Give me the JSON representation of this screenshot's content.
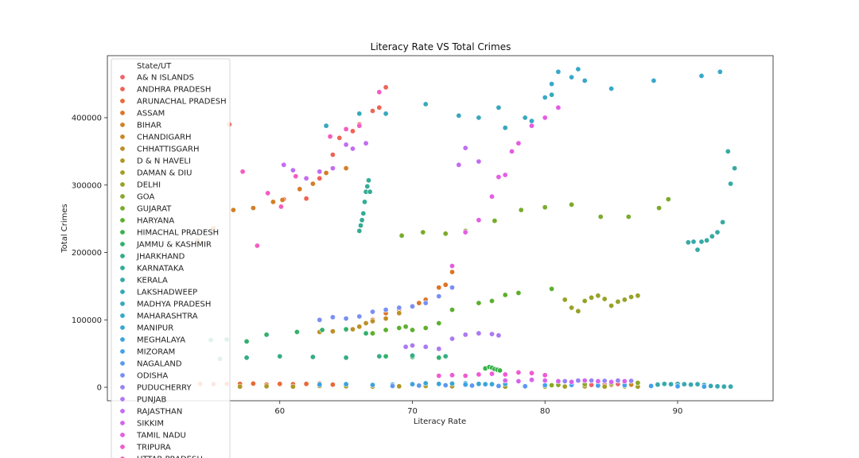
{
  "chart_data": {
    "type": "scatter",
    "title": "Literacy Rate VS Total Crimes",
    "xlabel": "Literacy Rate",
    "ylabel": "Total Crimes",
    "xlim": [
      47,
      97.2
    ],
    "ylim": [
      -20000,
      492000
    ],
    "x_ticks": [
      60,
      70,
      80,
      90
    ],
    "y_ticks": [
      0,
      100000,
      200000,
      300000,
      400000
    ],
    "y_tick_labels": [
      "0",
      "100000",
      "200000",
      "300000",
      "400000"
    ],
    "grid": false,
    "legend": {
      "title": "State/UT",
      "placement": "upper-left",
      "entries": [
        {
          "name": "A& N ISLANDS",
          "color": "#f0626b"
        },
        {
          "name": "ANDHRA PRADESH",
          "color": "#ee6455"
        },
        {
          "name": "ARUNACHAL PRADESH",
          "color": "#e86a38"
        },
        {
          "name": "ASSAM",
          "color": "#de7428"
        },
        {
          "name": "BIHAR",
          "color": "#d37f27"
        },
        {
          "name": "CHANDIGARH",
          "color": "#c88827"
        },
        {
          "name": "CHHATTISGARH",
          "color": "#bc9027"
        },
        {
          "name": "D & N HAVELI",
          "color": "#b09727"
        },
        {
          "name": "DAMAN & DIU",
          "color": "#a49d27"
        },
        {
          "name": "DELHI",
          "color": "#97a227"
        },
        {
          "name": "GOA",
          "color": "#8aa72b"
        },
        {
          "name": "GUJARAT",
          "color": "#7aab2b"
        },
        {
          "name": "HARYANA",
          "color": "#5db02d"
        },
        {
          "name": "HIMACHAL PRADESH",
          "color": "#3ab24a"
        },
        {
          "name": "JAMMU & KASHMIR",
          "color": "#33b06d"
        },
        {
          "name": "JHARKHAND",
          "color": "#34ad84"
        },
        {
          "name": "KARNATAKA",
          "color": "#35ab95"
        },
        {
          "name": "KERALA",
          "color": "#36aaa3"
        },
        {
          "name": "LAKSHADWEEP",
          "color": "#37a9b0"
        },
        {
          "name": "MADHYA PRADESH",
          "color": "#38a8bc"
        },
        {
          "name": "MAHARASHTRA",
          "color": "#39a8c8"
        },
        {
          "name": "MANIPUR",
          "color": "#3aa6d4"
        },
        {
          "name": "MEGHALAYA",
          "color": "#3ba3e0"
        },
        {
          "name": "MIZORAM",
          "color": "#43a0ec"
        },
        {
          "name": "NAGALAND",
          "color": "#5b98f2"
        },
        {
          "name": "ODISHA",
          "color": "#7a8ff4"
        },
        {
          "name": "PUDUCHERRY",
          "color": "#9584f3"
        },
        {
          "name": "PUNJAB",
          "color": "#ad79f1"
        },
        {
          "name": "RAJASTHAN",
          "color": "#c26df0"
        },
        {
          "name": "SIKKIM",
          "color": "#d564ec"
        },
        {
          "name": "TAMIL NADU",
          "color": "#e55de2"
        },
        {
          "name": "TRIPURA",
          "color": "#ef5bd2"
        },
        {
          "name": "UTTAR PRADESH",
          "color": "#f35dbf"
        }
      ]
    },
    "series": [
      {
        "name": "A& N ISLANDS",
        "x": [
          83.5,
          84,
          84.5,
          85,
          85.5,
          86
        ],
        "y": [
          3500,
          4000,
          4200,
          4500,
          4800,
          5000
        ]
      },
      {
        "name": "ANDHRA PRADESH",
        "x": [
          56.2,
          60.3,
          62,
          63,
          64,
          64.5,
          65.5,
          66,
          67,
          67.5,
          68
        ],
        "y": [
          390000,
          279000,
          280000,
          310000,
          345000,
          370000,
          380000,
          390000,
          410000,
          415000,
          445000
        ]
      },
      {
        "name": "ARUNACHAL PRADESH",
        "x": [
          54,
          55,
          56,
          57,
          58,
          59,
          60,
          61,
          62,
          63,
          64
        ],
        "y": [
          5000,
          4500,
          5000,
          5000,
          5500,
          4000,
          5000,
          4500,
          5000,
          5500,
          4000
        ]
      },
      {
        "name": "ASSAM",
        "x": [
          67,
          68,
          69,
          70,
          70.5,
          71,
          72,
          72.5,
          73
        ],
        "y": [
          100000,
          110000,
          115000,
          120000,
          125000,
          130000,
          148000,
          152000,
          171000
        ]
      },
      {
        "name": "BIHAR",
        "x": [
          53.8,
          55,
          56.5,
          58,
          59.5,
          60.2,
          61.5,
          62.5,
          63.5,
          65
        ],
        "y": [
          218000,
          236000,
          263000,
          266000,
          275000,
          278000,
          294000,
          302000,
          318000,
          325000
        ]
      },
      {
        "name": "CHANDIGARH",
        "x": [
          81,
          82,
          83,
          84,
          85,
          86,
          86.5
        ],
        "y": [
          3000,
          3500,
          4000,
          4500,
          3500,
          3000,
          4000
        ]
      },
      {
        "name": "CHHATTISGARH",
        "x": [
          63,
          64,
          65,
          65.5,
          66,
          66.5,
          67,
          68,
          69,
          70
        ],
        "y": [
          82000,
          83000,
          85000,
          86000,
          90000,
          95000,
          98000,
          102000,
          110000,
          120000
        ]
      },
      {
        "name": "D & N HAVELI",
        "x": [
          57,
          59,
          61,
          63,
          65,
          67,
          69,
          71,
          73
        ],
        "y": [
          1000,
          1500,
          1000,
          2000,
          1500,
          1000,
          1500,
          2000,
          1500
        ]
      },
      {
        "name": "DAMAN & DIU",
        "x": [
          77,
          78.5,
          80,
          81.5,
          83,
          84.5,
          86,
          87
        ],
        "y": [
          1000,
          1200,
          1000,
          1100,
          1300,
          1000,
          1200,
          1000
        ]
      },
      {
        "name": "DELHI",
        "x": [
          81.5,
          82,
          82.5,
          83,
          83.5,
          84,
          84.5,
          85,
          85.5,
          86,
          86.5,
          87
        ],
        "y": [
          130000,
          118000,
          113000,
          128000,
          133000,
          136000,
          131000,
          121000,
          127000,
          130000,
          134000,
          136000
        ]
      },
      {
        "name": "GOA",
        "x": [
          80.5,
          81,
          82,
          83,
          84,
          85,
          86,
          87
        ],
        "y": [
          3000,
          3500,
          4000,
          4500,
          5000,
          5500,
          6000,
          6500
        ]
      },
      {
        "name": "GUJARAT",
        "x": [
          69.2,
          70.8,
          72.5,
          74,
          76.2,
          78.2,
          80,
          82,
          84.2,
          86.3,
          88.6,
          89.3
        ],
        "y": [
          225000,
          230000,
          228000,
          232000,
          247000,
          263000,
          267000,
          271000,
          253000,
          253000,
          266000,
          279000
        ]
      },
      {
        "name": "HARYANA",
        "x": [
          67,
          68,
          69,
          69.5,
          70,
          71,
          72,
          73,
          75,
          76,
          77,
          78,
          80.5
        ],
        "y": [
          80000,
          85000,
          88000,
          90000,
          85000,
          88000,
          95000,
          115000,
          125000,
          128000,
          137000,
          140000,
          146000
        ]
      },
      {
        "name": "HIMACHAL PRADESH",
        "x": [
          75.5,
          75.8,
          76,
          76.2,
          76.4,
          76.6
        ],
        "y": [
          28000,
          30000,
          29000,
          27000,
          26000,
          25000
        ]
      },
      {
        "name": "JAMMU & KASHMIR",
        "x": [
          54.8,
          56,
          57.5,
          59,
          61.3,
          63.2,
          65,
          66.5,
          68,
          70,
          72
        ],
        "y": [
          70000,
          71000,
          68000,
          78000,
          82000,
          85000,
          86000,
          80000,
          46000,
          45000,
          44000
        ]
      },
      {
        "name": "JHARKHAND",
        "x": [
          55.5,
          57.5,
          60,
          62.5,
          65,
          67.5,
          70,
          72.5
        ],
        "y": [
          42000,
          44000,
          46000,
          45000,
          44000,
          46000,
          47000,
          46000
        ]
      },
      {
        "name": "KARNATAKA",
        "x": [
          66,
          66.1,
          66.2,
          66.3,
          66.4,
          66.5,
          66.6,
          66.7,
          66.8
        ],
        "y": [
          232000,
          240000,
          248000,
          258000,
          275000,
          290000,
          298000,
          307000,
          290000
        ]
      },
      {
        "name": "KERALA",
        "x": [
          90.8,
          91.2,
          91.5,
          91.8,
          92.2,
          92.6,
          93,
          93.4,
          93.8,
          94,
          94.3
        ],
        "y": [
          215000,
          216000,
          204000,
          216000,
          218000,
          224000,
          230000,
          245000,
          350000,
          302000,
          325000
        ]
      },
      {
        "name": "LAKSHADWEEP",
        "x": [
          88.5,
          89,
          89.5,
          90,
          90.5,
          91,
          91.5,
          92,
          92.5,
          93,
          93.5,
          94
        ],
        "y": [
          4000,
          5000,
          4500,
          5000,
          4500,
          4000,
          4500,
          3500,
          2000,
          1500,
          1000,
          1000
        ]
      },
      {
        "name": "MADHYA PRADESH",
        "x": [
          63.5,
          66,
          68,
          71,
          73.5,
          75,
          76.5,
          77,
          78.5,
          80,
          80.5
        ],
        "y": [
          388000,
          406000,
          406000,
          420000,
          403000,
          400000,
          415000,
          385000,
          400000,
          430000,
          434000
        ]
      },
      {
        "name": "MAHARASHTRA",
        "x": [
          79,
          80,
          80.5,
          81,
          82,
          82.5,
          83,
          85,
          88.2,
          91.8,
          93.2
        ],
        "y": [
          395000,
          430000,
          450000,
          468000,
          460000,
          472000,
          455000,
          443000,
          455000,
          462000,
          468000
        ]
      },
      {
        "name": "MANIPUR",
        "x": [
          70,
          71,
          72,
          73,
          74,
          75,
          76,
          77
        ],
        "y": [
          5000,
          6000,
          5000,
          5500,
          6000,
          5000,
          4500,
          5000
        ]
      },
      {
        "name": "MEGHALAYA",
        "x": [
          63,
          65,
          67,
          68.5,
          70,
          72,
          74,
          75.5
        ],
        "y": [
          4000,
          4500,
          3500,
          4000,
          4500,
          5000,
          4000,
          4500
        ]
      },
      {
        "name": "MIZORAM",
        "x": [
          80,
          82,
          84,
          86,
          88,
          90,
          92
        ],
        "y": [
          3000,
          3500,
          2500,
          3000,
          2000,
          1500,
          1000
        ]
      },
      {
        "name": "NAGALAND",
        "x": [
          68.5,
          70.5,
          72.5,
          74.5,
          76.5,
          78.5
        ],
        "y": [
          2000,
          2500,
          3000,
          2500,
          2000,
          1500
        ]
      },
      {
        "name": "ODISHA",
        "x": [
          63,
          64,
          65,
          66,
          67,
          68,
          69,
          70,
          71,
          72,
          73
        ],
        "y": [
          100000,
          104000,
          102000,
          105000,
          112000,
          115000,
          118000,
          120000,
          125000,
          135000,
          148000
        ]
      },
      {
        "name": "PUDUCHERRY",
        "x": [
          81.5,
          82.5,
          83.5,
          84.5,
          85.5,
          86.5
        ],
        "y": [
          9000,
          10000,
          10000,
          9500,
          10000,
          9500
        ]
      },
      {
        "name": "PUNJAB",
        "x": [
          69.5,
          70,
          71,
          72,
          73,
          74,
          75,
          76,
          76.5
        ],
        "y": [
          60000,
          62000,
          60000,
          57000,
          72000,
          78000,
          80000,
          79000,
          77000
        ]
      },
      {
        "name": "RAJASTHAN",
        "x": [
          60.3,
          61,
          62,
          63,
          64,
          65,
          65.5,
          66.5,
          73.5,
          74,
          75
        ],
        "y": [
          330000,
          322000,
          310000,
          320000,
          325000,
          360000,
          354000,
          362000,
          330000,
          355000,
          335000
        ]
      },
      {
        "name": "SIKKIM",
        "x": [
          77,
          78,
          79,
          80,
          81,
          82,
          83,
          84,
          85,
          86
        ],
        "y": [
          10000,
          9000,
          11000,
          10000,
          9000,
          8000,
          10000,
          9000,
          8000,
          9000
        ]
      },
      {
        "name": "TAMIL NADU",
        "x": [
          74,
          75,
          76,
          76.5,
          77,
          77.5,
          78,
          79,
          80,
          81,
          73
        ],
        "y": [
          230000,
          248000,
          283000,
          312000,
          315000,
          350000,
          362000,
          388000,
          400000,
          415000,
          180000
        ]
      },
      {
        "name": "TRIPURA",
        "x": [
          72,
          73,
          74,
          75,
          76,
          77,
          78,
          79,
          80
        ],
        "y": [
          17000,
          18000,
          17000,
          19000,
          20000,
          19000,
          22000,
          21000,
          18000
        ]
      },
      {
        "name": "UTTAR PRADESH",
        "x": [
          57.2,
          58.3,
          59.1,
          60.1,
          61.2,
          63.8,
          65,
          66,
          67.5
        ],
        "y": [
          320000,
          210000,
          288000,
          268000,
          313000,
          372000,
          383000,
          388000,
          438000
        ]
      }
    ]
  }
}
